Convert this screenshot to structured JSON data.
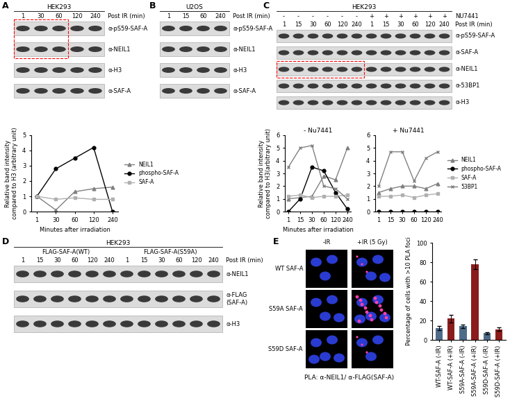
{
  "panel_letters": [
    "A",
    "B",
    "C",
    "D",
    "E"
  ],
  "blots": [
    {
      "cell_line": "HEK293",
      "lane_axis_label": "Post IR (min)",
      "lanes": [
        "1",
        "30",
        "60",
        "120",
        "240"
      ],
      "rows": [
        "α-pS59-SAF-A",
        "α-NEIL1",
        "α-H3",
        "α-SAF-A"
      ]
    },
    {
      "cell_line": "U2OS",
      "lane_axis_label": "Post IR (min)",
      "lanes": [
        "1",
        "15",
        "60",
        "240"
      ],
      "rows": [
        "α-pS59-SAF-A",
        "α-NEIL1",
        "α-H3",
        "α-SAF-A"
      ]
    },
    {
      "cell_line": "HEK293",
      "lane_axis_label": "Post IR (min)",
      "treatment": {
        "label": "NU7441",
        "signs": [
          "-",
          "-",
          "-",
          "-",
          "-",
          "-",
          "+",
          "+",
          "+",
          "+",
          "+",
          "+"
        ]
      },
      "lanes": [
        "1",
        "15",
        "30",
        "60",
        "120",
        "240",
        "1",
        "15",
        "30",
        "60",
        "120",
        "240"
      ],
      "rows": [
        "α-pS59-SAF-A",
        "α-SAF-A",
        "α-NEIL1",
        "α-53BP1",
        "α-H3"
      ]
    },
    {
      "cell_line": "HEK293",
      "lane_axis_label": "Post IR (min)",
      "groups": [
        "FLAG-SAF-A(WT)",
        "FLAG-SAF-A(S59A)"
      ],
      "lanes": [
        "1",
        "15",
        "30",
        "60",
        "120",
        "240",
        "1",
        "15",
        "30",
        "60",
        "120",
        "240"
      ],
      "rows": [
        "α-NEIL1",
        "α-FLAG\n(SAF-A)",
        "α-H3"
      ]
    }
  ],
  "images": {
    "columns": [
      "-IR",
      "+IR (5 Gy)"
    ],
    "rows": [
      "WT SAF-A",
      "S59A SAF-A",
      "S59D SAF-A"
    ],
    "caption": "PLA: α-NEIL1/ α-FLAG(SAF-A)"
  },
  "chart_data": [
    {
      "type": "line",
      "xlabel": "Minutes after irradiation",
      "ylabel": "Relative band intensity\ncompared to H3 (arbitrary unit)",
      "categories": [
        "1",
        "30",
        "60",
        "120",
        "240"
      ],
      "ylim": [
        0,
        5
      ],
      "yticks": [
        0,
        1,
        2,
        3,
        4,
        5
      ],
      "legend": "center left",
      "series": [
        {
          "name": "NEIL1",
          "color": "#808080",
          "marker": "^",
          "values": [
            1,
            0.1,
            1.3,
            1.5,
            1.6
          ]
        },
        {
          "name": "phospho-SAF-A",
          "color": "#000000",
          "marker": "o",
          "values": [
            1,
            2.8,
            3.5,
            4.2,
            0
          ]
        },
        {
          "name": "SAF-A",
          "color": "#b0b0b0",
          "marker": "s",
          "values": [
            1,
            0.8,
            0.9,
            0.8,
            0.8
          ]
        }
      ]
    },
    {
      "type": "line",
      "title": "- Nu7441",
      "xlabel": "Minutes after irradiation",
      "ylabel": "Relative band intensity\ncompared to H3(arbitrary unit)",
      "categories": [
        "1",
        "15",
        "30",
        "60",
        "120",
        "240"
      ],
      "ylim": [
        0,
        6
      ],
      "yticks": [
        0,
        1,
        2,
        3,
        4,
        5,
        6
      ],
      "series": [
        {
          "name": "NEIL1",
          "color": "#808080",
          "marker": "^",
          "values": [
            1,
            1.1,
            1.2,
            2.8,
            2.5,
            5
          ]
        },
        {
          "name": "phospho-SAF-A",
          "color": "#000000",
          "marker": "o",
          "values": [
            0,
            1,
            3.5,
            3.2,
            1.5,
            0.2
          ]
        },
        {
          "name": "SAF-A",
          "color": "#b0b0b0",
          "marker": "s",
          "values": [
            1.2,
            1.3,
            1.1,
            1.2,
            1.2,
            1.3
          ]
        },
        {
          "name": "53BP1",
          "color": "#808080",
          "marker": "x",
          "values": [
            3.5,
            5,
            5.2,
            2,
            1.8,
            1
          ]
        }
      ]
    },
    {
      "type": "line",
      "title": "+ Nu7441",
      "categories": [
        "1",
        "15",
        "30",
        "60",
        "120",
        "240"
      ],
      "ylim": [
        0,
        6
      ],
      "yticks": [
        0,
        1,
        2,
        3,
        4,
        5,
        6
      ],
      "legend": "center left",
      "series": [
        {
          "name": "NEIL1",
          "color": "#808080",
          "marker": "^",
          "values": [
            1.5,
            1.8,
            2,
            2,
            1.8,
            2.2
          ]
        },
        {
          "name": "phospho-SAF-A",
          "color": "#000000",
          "marker": "o",
          "values": [
            0,
            0,
            0,
            0,
            0,
            0
          ]
        },
        {
          "name": "SAF-A",
          "color": "#b0b0b0",
          "marker": "s",
          "values": [
            1.2,
            1.2,
            1.3,
            1.1,
            1.3,
            1.4
          ]
        },
        {
          "name": "53BP1",
          "color": "#808080",
          "marker": "x",
          "values": [
            2,
            4.7,
            4.7,
            2.4,
            4.2,
            4.7
          ]
        }
      ]
    },
    {
      "type": "bar",
      "ylabel": "Percentage of cells with >10 PLA foci",
      "categories": [
        "WT-SAF-A (-IR)",
        "WT-SAF-A (+IR)",
        "S59A-SAF-A (-IR)",
        "S59A-SAF-A (+IR)",
        "S59D-SAF-A (-IR)",
        "S59D-SAF-A (+IR)"
      ],
      "values": [
        12,
        22,
        14,
        78,
        7,
        11
      ],
      "errors": [
        2,
        4,
        2,
        5,
        1,
        2
      ],
      "colors": [
        "#4f6b8a",
        "#8b1c1c",
        "#4f6b8a",
        "#8b1c1c",
        "#4f6b8a",
        "#8b1c1c"
      ],
      "ylim": [
        0,
        100
      ],
      "yticks": [
        0,
        20,
        40,
        60,
        80,
        100
      ]
    }
  ]
}
